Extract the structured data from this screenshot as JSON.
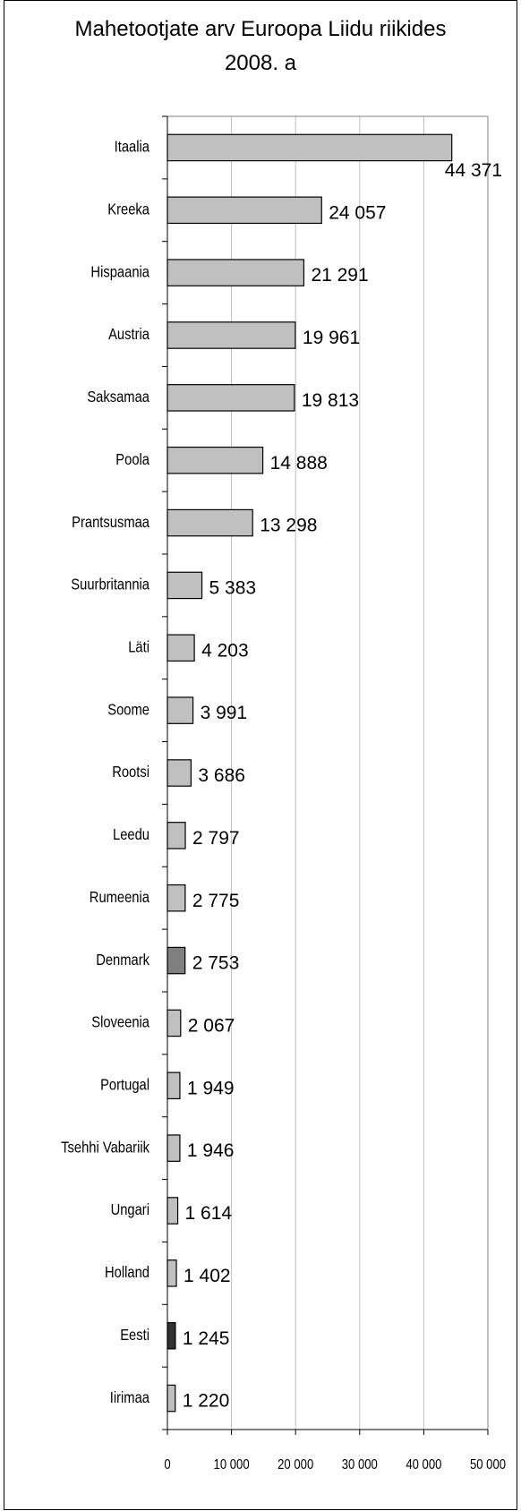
{
  "chart_data": {
    "type": "bar",
    "orientation": "horizontal",
    "title": "Mahetootjate arv Euroopa Liidu riikides 2008. a",
    "categories": [
      "Itaalia",
      "Kreeka",
      "Hispaania",
      "Austria",
      "Saksamaa",
      "Poola",
      "Prantsusmaa",
      "Suurbritannia",
      "Läti",
      "Soome",
      "Rootsi",
      "Leedu",
      "Rumeenia",
      "Denmark",
      "Sloveenia",
      "Portugal",
      "Tsehhi Vabariik",
      "Ungari",
      "Holland",
      "Eesti",
      "Iirimaa"
    ],
    "values": [
      44371,
      24057,
      21291,
      19961,
      19813,
      14888,
      13298,
      5383,
      4203,
      3991,
      3686,
      2797,
      2775,
      2753,
      2067,
      1949,
      1946,
      1614,
      1402,
      1245,
      1220
    ],
    "value_labels": [
      "44 371",
      "24 057",
      "21 291",
      "19 961",
      "19 813",
      "14 888",
      "13 298",
      "5 383",
      "4 203",
      "3 991",
      "3 686",
      "2 797",
      "2 775",
      "2 753",
      "2 067",
      "1 949",
      "1 946",
      "1 614",
      "1 402",
      "1 245",
      "1 220"
    ],
    "colors": [
      "#c0c0c0",
      "#c0c0c0",
      "#c0c0c0",
      "#c0c0c0",
      "#c0c0c0",
      "#c0c0c0",
      "#c0c0c0",
      "#c0c0c0",
      "#c0c0c0",
      "#c0c0c0",
      "#c0c0c0",
      "#c0c0c0",
      "#c0c0c0",
      "#808080",
      "#c0c0c0",
      "#c0c0c0",
      "#c0c0c0",
      "#c0c0c0",
      "#c0c0c0",
      "#333333",
      "#c0c0c0"
    ],
    "xlim": [
      0,
      50000
    ],
    "xticks": [
      0,
      {
        "value": 10000,
        "label": "10 000"
      },
      {
        "value": 20000,
        "label": "20 000"
      },
      {
        "value": 30000,
        "label": "30 000"
      },
      {
        "value": 40000,
        "label": "40 000"
      },
      {
        "value": 50000,
        "label": "50 000"
      }
    ],
    "grid": true
  }
}
